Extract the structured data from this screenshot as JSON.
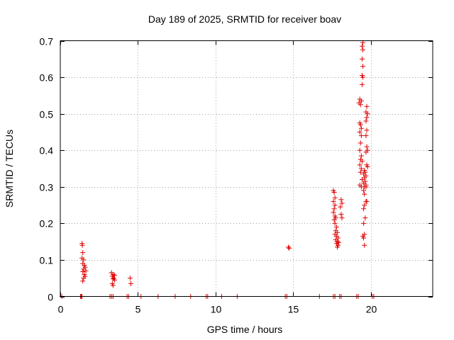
{
  "chart_data": {
    "type": "scatter",
    "title": "Day 189 of 2025, SRMTID for receiver boav",
    "xlabel": "GPS time / hours",
    "ylabel": "SRMTID / TECUs",
    "xlim": [
      0,
      24
    ],
    "ylim": [
      0,
      0.7
    ],
    "xticks": [
      0,
      5,
      10,
      15,
      20
    ],
    "yticks": [
      0,
      0.1,
      0.2,
      0.3,
      0.4,
      0.5,
      0.6,
      0.7
    ],
    "xtick_labels": [
      "0",
      "5",
      "10",
      "15",
      "20"
    ],
    "ytick_labels": [
      "0",
      "0.1",
      "0.2",
      "0.3",
      "0.4",
      "0.5",
      "0.6",
      "0.7"
    ],
    "grid": true,
    "marker": "+",
    "colors": {
      "points": "#e00000",
      "axis": "#000000",
      "grid": "#a0a0a0"
    },
    "series": [
      {
        "name": "SRMTID",
        "points": [
          [
            0.1,
            0
          ],
          [
            1.3,
            0
          ],
          [
            1.35,
            0
          ],
          [
            1.4,
            0
          ],
          [
            3.2,
            0
          ],
          [
            3.3,
            0
          ],
          [
            3.4,
            0
          ],
          [
            4.3,
            0
          ],
          [
            4.4,
            0
          ],
          [
            5.2,
            0
          ],
          [
            6.3,
            0
          ],
          [
            7.4,
            0
          ],
          [
            8.4,
            0
          ],
          [
            9.4,
            0
          ],
          [
            9.5,
            0
          ],
          [
            10.4,
            0
          ],
          [
            11.4,
            0
          ],
          [
            14.5,
            0
          ],
          [
            14.6,
            0
          ],
          [
            16.7,
            0
          ],
          [
            17.6,
            0
          ],
          [
            17.7,
            0
          ],
          [
            18.0,
            0
          ],
          [
            18.1,
            0
          ],
          [
            19.1,
            0
          ],
          [
            19.2,
            0
          ],
          [
            20.1,
            0
          ],
          [
            20.2,
            0
          ],
          [
            1.4,
            0.145
          ],
          [
            1.42,
            0.14
          ],
          [
            1.45,
            0.12
          ],
          [
            1.4,
            0.105
          ],
          [
            1.5,
            0.1
          ],
          [
            1.45,
            0.09
          ],
          [
            1.55,
            0.085
          ],
          [
            1.6,
            0.08
          ],
          [
            1.5,
            0.075
          ],
          [
            1.65,
            0.07
          ],
          [
            1.45,
            0.068
          ],
          [
            1.55,
            0.06
          ],
          [
            1.6,
            0.055
          ],
          [
            1.5,
            0.05
          ],
          [
            1.45,
            0.042
          ],
          [
            3.3,
            0.065
          ],
          [
            3.4,
            0.06
          ],
          [
            3.5,
            0.058
          ],
          [
            3.35,
            0.055
          ],
          [
            3.45,
            0.05
          ],
          [
            3.4,
            0.048
          ],
          [
            3.5,
            0.045
          ],
          [
            3.35,
            0.035
          ],
          [
            3.4,
            0.03
          ],
          [
            4.5,
            0.05
          ],
          [
            4.55,
            0.035
          ],
          [
            14.7,
            0.135
          ],
          [
            14.75,
            0.132
          ],
          [
            17.6,
            0.29
          ],
          [
            17.65,
            0.285
          ],
          [
            17.7,
            0.27
          ],
          [
            17.6,
            0.26
          ],
          [
            17.7,
            0.25
          ],
          [
            17.65,
            0.24
          ],
          [
            17.6,
            0.23
          ],
          [
            17.7,
            0.22
          ],
          [
            17.75,
            0.215
          ],
          [
            17.65,
            0.21
          ],
          [
            17.7,
            0.2
          ],
          [
            17.8,
            0.19
          ],
          [
            17.75,
            0.18
          ],
          [
            17.85,
            0.175
          ],
          [
            17.7,
            0.17
          ],
          [
            17.8,
            0.165
          ],
          [
            17.9,
            0.16
          ],
          [
            17.75,
            0.155
          ],
          [
            17.85,
            0.15
          ],
          [
            17.95,
            0.148
          ],
          [
            17.8,
            0.145
          ],
          [
            17.9,
            0.14
          ],
          [
            17.85,
            0.135
          ],
          [
            18.1,
            0.265
          ],
          [
            18.15,
            0.255
          ],
          [
            18.05,
            0.245
          ],
          [
            18.1,
            0.225
          ],
          [
            18.15,
            0.215
          ],
          [
            19.5,
            0.695
          ],
          [
            19.45,
            0.685
          ],
          [
            19.5,
            0.675
          ],
          [
            19.45,
            0.65
          ],
          [
            19.5,
            0.63
          ],
          [
            19.45,
            0.605
          ],
          [
            19.5,
            0.6
          ],
          [
            19.45,
            0.58
          ],
          [
            19.3,
            0.54
          ],
          [
            19.25,
            0.53
          ],
          [
            19.35,
            0.525
          ],
          [
            19.4,
            0.535
          ],
          [
            19.3,
            0.475
          ],
          [
            19.35,
            0.47
          ],
          [
            19.4,
            0.46
          ],
          [
            19.3,
            0.45
          ],
          [
            19.4,
            0.44
          ],
          [
            19.35,
            0.42
          ],
          [
            19.3,
            0.4
          ],
          [
            19.4,
            0.385
          ],
          [
            19.35,
            0.375
          ],
          [
            19.45,
            0.37
          ],
          [
            19.3,
            0.36
          ],
          [
            19.4,
            0.35
          ],
          [
            19.35,
            0.34
          ],
          [
            19.3,
            0.305
          ],
          [
            19.4,
            0.3
          ],
          [
            19.45,
            0.32
          ],
          [
            19.6,
            0.345
          ],
          [
            19.65,
            0.34
          ],
          [
            19.55,
            0.335
          ],
          [
            19.7,
            0.33
          ],
          [
            19.6,
            0.325
          ],
          [
            19.65,
            0.315
          ],
          [
            19.55,
            0.31
          ],
          [
            19.7,
            0.305
          ],
          [
            19.6,
            0.3
          ],
          [
            19.55,
            0.29
          ],
          [
            19.6,
            0.28
          ],
          [
            19.7,
            0.26
          ],
          [
            19.6,
            0.25
          ],
          [
            19.55,
            0.24
          ],
          [
            19.65,
            0.215
          ],
          [
            19.55,
            0.2
          ],
          [
            19.6,
            0.17
          ],
          [
            19.55,
            0.16
          ],
          [
            19.6,
            0.14
          ],
          [
            19.5,
            0.165
          ],
          [
            19.75,
            0.52
          ],
          [
            19.7,
            0.505
          ],
          [
            19.8,
            0.5
          ],
          [
            19.75,
            0.49
          ],
          [
            19.7,
            0.48
          ],
          [
            19.75,
            0.455
          ],
          [
            19.7,
            0.44
          ],
          [
            19.75,
            0.41
          ],
          [
            19.8,
            0.4
          ],
          [
            19.7,
            0.395
          ],
          [
            19.75,
            0.36
          ],
          [
            19.8,
            0.355
          ],
          [
            19.7,
            0.3
          ],
          [
            19.75,
            0.26
          ]
        ]
      }
    ]
  }
}
